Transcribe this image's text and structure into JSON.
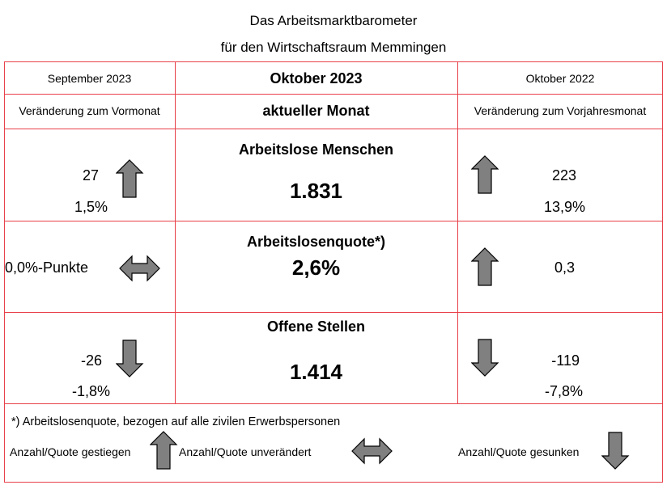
{
  "title": {
    "line1": "Das Arbeitsmarktbarometer",
    "line2": "für den Wirtschaftsraum Memmingen"
  },
  "header": {
    "left_month": "September 2023",
    "center_month": "Oktober 2023",
    "right_month": "Oktober 2022",
    "left_caption": "Veränderung zum Vormonat",
    "center_caption": "aktueller Monat",
    "right_caption": "Veränderung zum Vorjahresmonat"
  },
  "rows": {
    "arbeitslose": {
      "label": "Arbeitslose Menschen",
      "value": "1.831",
      "prev_change": "27",
      "prev_percent": "1,5%",
      "prev_trend": "up-arrow-icon",
      "year_change": "223",
      "year_percent": "13,9%",
      "year_trend": "up-arrow-icon"
    },
    "quote": {
      "label": "Arbeitslosenquote*)",
      "value": "2,6%",
      "prev_change": "0,0%-Punkte",
      "prev_trend": "left-right-arrow-icon",
      "year_change": "0,3",
      "year_trend": "up-arrow-icon"
    },
    "stellen": {
      "label": "Offene Stellen",
      "value": "1.414",
      "prev_change": "-26",
      "prev_percent": "-1,8%",
      "prev_trend": "down-arrow-icon",
      "year_change": "-119",
      "year_percent": "-7,8%",
      "year_trend": "down-arrow-icon"
    }
  },
  "footer": {
    "note": "*) Arbeitslosenquote, bezogen auf alle zivilen Erwerbspersonen",
    "legend_up": "Anzahl/Quote gestiegen",
    "legend_same": "Anzahl/Quote unverändert",
    "legend_down": "Anzahl/Quote gesunken"
  },
  "colors": {
    "grid": "#e8404a",
    "arrow_fill": "#808080",
    "arrow_stroke": "#000000"
  }
}
